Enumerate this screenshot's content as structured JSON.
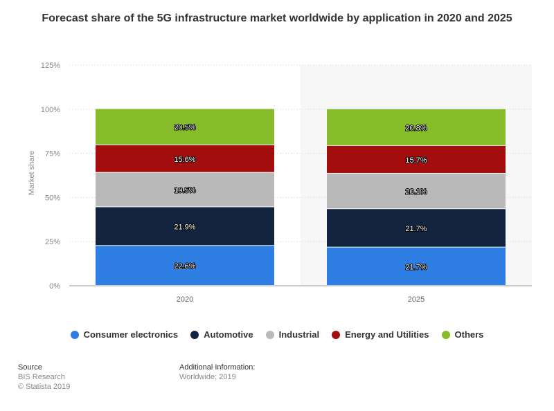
{
  "chart_data": {
    "type": "bar",
    "stacked": true,
    "title": "Forecast share of the 5G infrastructure market worldwide by application in 2020 and 2025",
    "xlabel": "",
    "ylabel": "Market share",
    "ylim": [
      0,
      125
    ],
    "yticks": [
      "0%",
      "25%",
      "50%",
      "75%",
      "100%",
      "125%"
    ],
    "ytick_values": [
      0,
      25,
      50,
      75,
      100,
      125
    ],
    "categories": [
      "2020",
      "2025"
    ],
    "grid": true,
    "legend_position": "bottom",
    "series": [
      {
        "name": "Consumer electronics",
        "color": "#2e7ee3",
        "values": [
          22.6,
          21.7
        ],
        "labels": [
          "22.6%",
          "21.7%"
        ]
      },
      {
        "name": "Automotive",
        "color": "#12233d",
        "values": [
          21.9,
          21.7
        ],
        "labels": [
          "21.9%",
          "21.7%"
        ]
      },
      {
        "name": "Industrial",
        "color": "#b9b9b9",
        "values": [
          19.5,
          20.1
        ],
        "labels": [
          "19.5%",
          "20.1%"
        ]
      },
      {
        "name": "Energy and Utilities",
        "color": "#a30d0d",
        "values": [
          15.6,
          15.7
        ],
        "labels": [
          "15.6%",
          "15.7%"
        ]
      },
      {
        "name": "Others",
        "color": "#86bc2a",
        "values": [
          20.5,
          20.8
        ],
        "labels": [
          "20.5%",
          "20.8%"
        ]
      }
    ]
  },
  "footer": {
    "source_heading": "Source",
    "source_name": "BIS Research",
    "copyright": "© Statista 2019",
    "additional_heading": "Additional Information:",
    "additional_text": "Worldwide; 2019"
  }
}
